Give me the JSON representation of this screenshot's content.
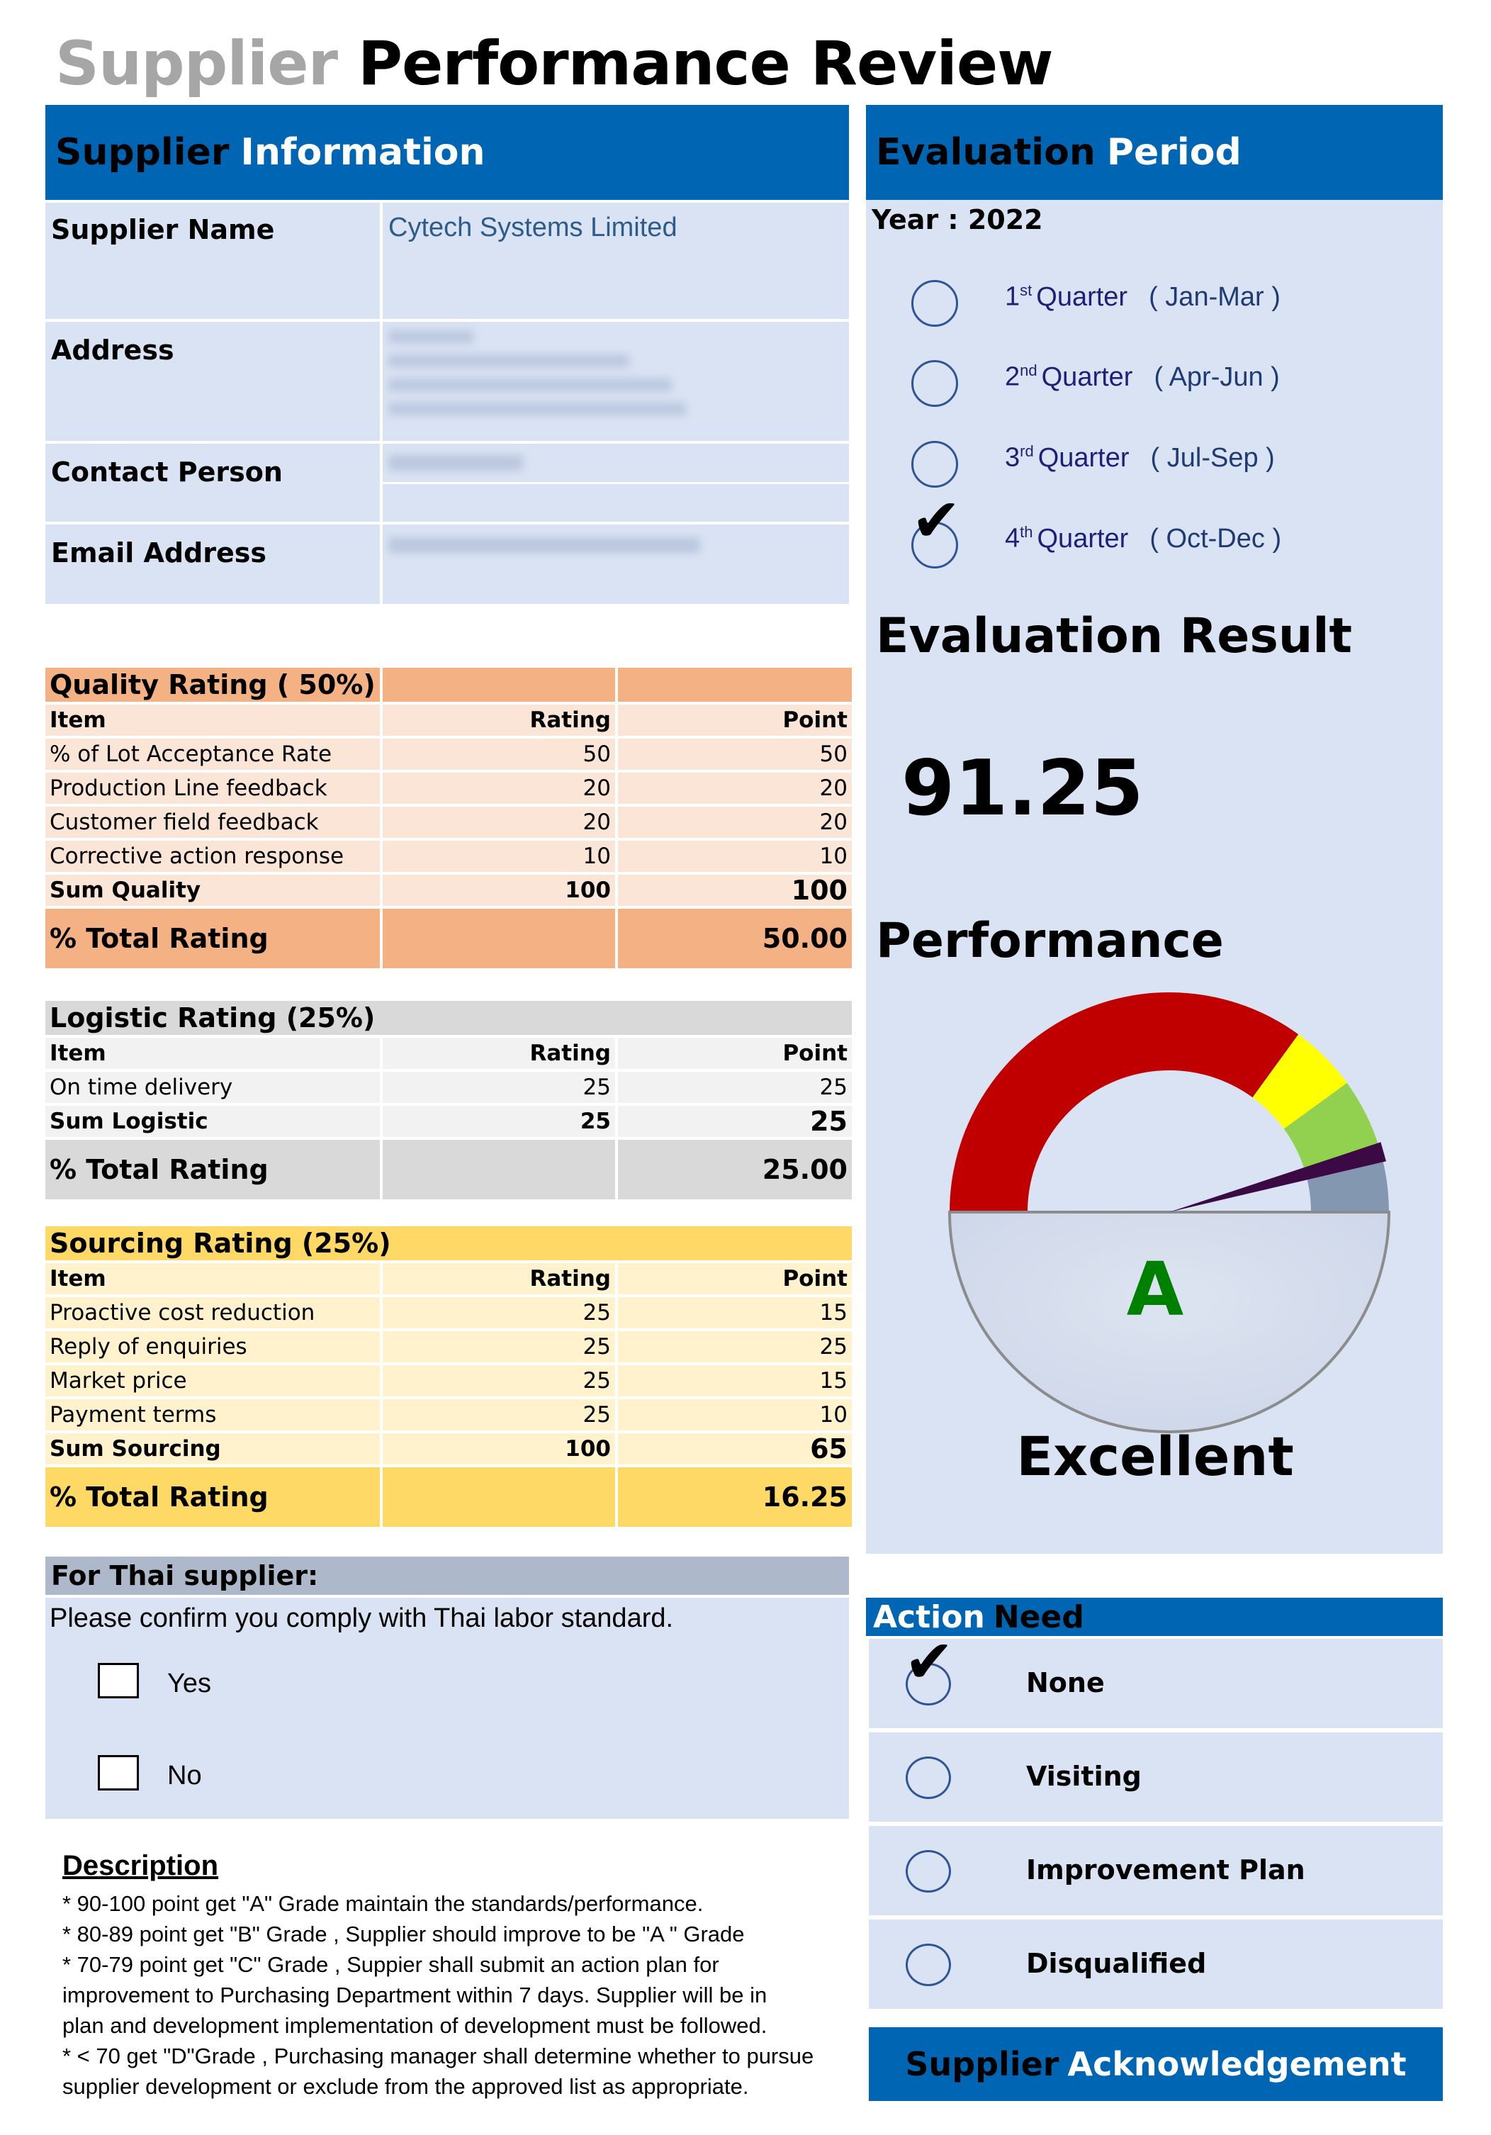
{
  "title": {
    "prefix": "Supplier",
    "main": "Performance Review"
  },
  "supplier_info": {
    "header_prefix": "Supplier",
    "header_main": "Information",
    "name_label": "Supplier Name",
    "name_value": "Cytech Systems Limited",
    "address_label": "Address",
    "contact_label": "Contact Person",
    "email_label": "Email Address"
  },
  "evaluation_period": {
    "header_prefix": "Evaluation",
    "header_main": "Period",
    "year": "Year : 2022",
    "quarters": [
      {
        "num": "1",
        "sup": "st",
        "word": "Quarter",
        "range": "( Jan-Mar )",
        "checked": false
      },
      {
        "num": "2",
        "sup": "nd",
        "word": "Quarter",
        "range": "( Apr-Jun )",
        "checked": false
      },
      {
        "num": "3",
        "sup": "rd",
        "word": "Quarter",
        "range": "( Jul-Sep )",
        "checked": false
      },
      {
        "num": "4",
        "sup": "th",
        "word": "Quarter",
        "range": "( Oct-Dec )",
        "checked": true
      }
    ]
  },
  "quality": {
    "title": "Quality Rating ( 50%)",
    "col_item": "Item",
    "col_rating": "Rating",
    "col_point": "Point",
    "rows": [
      {
        "item": "% of Lot Acceptance Rate",
        "rating": "50",
        "point": "50"
      },
      {
        "item": "Production Line feedback",
        "rating": "20",
        "point": "20"
      },
      {
        "item": "Customer field feedback",
        "rating": "20",
        "point": "20"
      },
      {
        "item": "Corrective action response",
        "rating": "10",
        "point": "10"
      }
    ],
    "sum_label": "Sum Quality",
    "sum_rating": "100",
    "sum_point": "100",
    "total_label": "% Total Rating",
    "total_value": "50.00"
  },
  "logistic": {
    "title": "Logistic Rating (25%)",
    "col_item": "Item",
    "col_rating": "Rating",
    "col_point": "Point",
    "rows": [
      {
        "item": "On time delivery",
        "rating": "25",
        "point": "25"
      }
    ],
    "sum_label": "Sum Logistic",
    "sum_rating": "25",
    "sum_point": "25",
    "total_label": "% Total Rating",
    "total_value": "25.00"
  },
  "sourcing": {
    "title": "Sourcing Rating (25%)",
    "col_item": "Item",
    "col_rating": "Rating",
    "col_point": "Point",
    "rows": [
      {
        "item": "Proactive cost reduction",
        "rating": "25",
        "point": "15"
      },
      {
        "item": "Reply of enquiries",
        "rating": "25",
        "point": "25"
      },
      {
        "item": "Market price",
        "rating": "25",
        "point": "15"
      },
      {
        "item": "Payment terms",
        "rating": "25",
        "point": "10"
      }
    ],
    "sum_label": "Sum Sourcing",
    "sum_rating": "100",
    "sum_point": "65",
    "total_label": "% Total Rating",
    "total_value": "16.25"
  },
  "evaluation_result": {
    "label": "Evaluation Result",
    "score": "91.25",
    "performance_label": "Performance",
    "grade": "A",
    "grade_text": "Excellent",
    "gauge_value": 91.25,
    "gauge_max": 100,
    "gauge_bands_from": [
      0,
      70,
      80,
      90
    ],
    "gauge_colors": [
      "#c00000",
      "#ffff00",
      "#92d050",
      "#8497b0"
    ]
  },
  "thai_supplier": {
    "header": "For Thai supplier:",
    "question": "Please confirm you comply with Thai labor standard.",
    "options": [
      {
        "label": "Yes",
        "checked": false
      },
      {
        "label": "No",
        "checked": false
      }
    ]
  },
  "action_need": {
    "header_prefix": "Action",
    "header_main": "Need",
    "options": [
      {
        "label": "None",
        "checked": true
      },
      {
        "label": "Visiting",
        "checked": false
      },
      {
        "label": "Improvement Plan",
        "checked": false
      },
      {
        "label": "Disqualified",
        "checked": false
      }
    ]
  },
  "description": {
    "title": "Description",
    "lines": [
      "* 90-100 point get \"A\" Grade maintain the standards/performance.",
      "* 80-89 point  get \"B\" Grade , Supplier should improve  to be \"A \" Grade",
      "* 70-79 point get \"C\" Grade , Suppier shall submit an action plan for",
      "improvement to Purchasing Department within 7 days. Supplier will be in",
      "plan   and development  implementation of development must be followed.",
      "* < 70  get \"D\"Grade , Purchasing manager shall determine whether to pursue",
      "supplier development or exclude from the approved list as appropriate."
    ]
  },
  "acknowledgement": {
    "prefix": "Supplier",
    "main": "Acknowledgement"
  }
}
